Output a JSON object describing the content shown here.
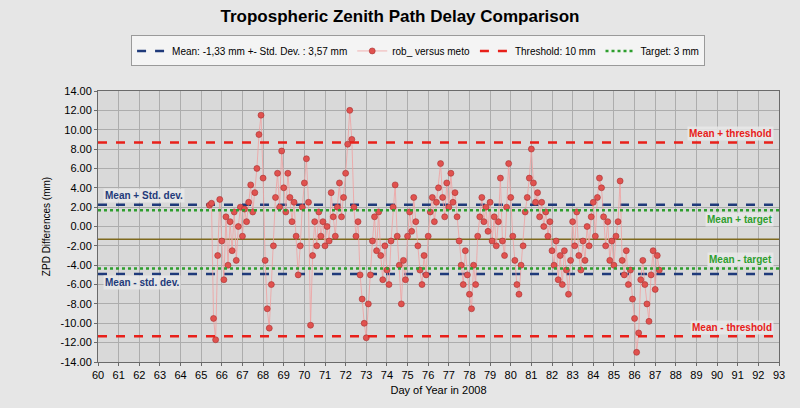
{
  "chart_data": {
    "type": "scatter",
    "title": "Tropospheric Zenith Path Delay Comparison",
    "x_label": "Day of Year in 2008",
    "y_label": "ZPD Differences (mm)",
    "xlim": [
      60,
      93
    ],
    "xticks": [
      60,
      61,
      62,
      63,
      64,
      65,
      66,
      67,
      68,
      69,
      70,
      71,
      72,
      73,
      74,
      75,
      76,
      77,
      78,
      79,
      80,
      81,
      82,
      83,
      84,
      85,
      86,
      87,
      88,
      89,
      90,
      91,
      92,
      93
    ],
    "ylim": [
      -14,
      14
    ],
    "yticks": [
      {
        "value": -14,
        "label": "-14.00"
      },
      {
        "value": -12,
        "label": "-12.00"
      },
      {
        "value": -10,
        "label": "-10.00"
      },
      {
        "value": -8,
        "label": "-8.00"
      },
      {
        "value": -6,
        "label": "-6.00"
      },
      {
        "value": -4,
        "label": "-4.00"
      },
      {
        "value": -2,
        "label": "-2.00"
      },
      {
        "value": 0,
        "label": "0.00"
      },
      {
        "value": 2,
        "label": "2.00"
      },
      {
        "value": 4,
        "label": "4.00"
      },
      {
        "value": 6,
        "label": "6.00"
      },
      {
        "value": 8,
        "label": "8.00"
      },
      {
        "value": 10,
        "label": "10.00"
      },
      {
        "value": 12,
        "label": "12.00"
      },
      {
        "value": 14,
        "label": "14.00"
      }
    ],
    "grid": true,
    "legend": "top",
    "series": [
      {
        "name": "rob_ versus meto",
        "color": "#e0524f",
        "marker": "circle",
        "line_style": "solid",
        "x": [
          65.4,
          65.5,
          65.6,
          65.7,
          65.8,
          65.9,
          66.0,
          66.1,
          66.2,
          66.3,
          66.4,
          66.5,
          66.6,
          66.7,
          66.8,
          66.9,
          67.0,
          67.1,
          67.2,
          67.3,
          67.4,
          67.5,
          67.6,
          67.7,
          67.8,
          67.9,
          68.0,
          68.1,
          68.2,
          68.3,
          68.4,
          68.5,
          68.6,
          68.7,
          68.8,
          68.9,
          69.0,
          69.1,
          69.2,
          69.3,
          69.4,
          69.5,
          69.6,
          69.7,
          69.8,
          69.9,
          70.0,
          70.1,
          70.2,
          70.3,
          70.4,
          70.5,
          70.6,
          70.7,
          70.8,
          70.9,
          71.0,
          71.1,
          71.2,
          71.3,
          71.4,
          71.5,
          71.6,
          71.7,
          71.8,
          71.9,
          72.0,
          72.1,
          72.2,
          72.3,
          72.4,
          72.5,
          72.6,
          72.7,
          72.8,
          72.9,
          73.0,
          73.1,
          73.2,
          73.3,
          73.4,
          73.5,
          73.6,
          73.7,
          73.8,
          73.9,
          74.0,
          74.1,
          74.2,
          74.3,
          74.4,
          74.5,
          74.6,
          74.7,
          74.8,
          74.9,
          75.0,
          75.1,
          75.2,
          75.3,
          75.4,
          75.5,
          75.6,
          75.7,
          75.8,
          75.9,
          76.0,
          76.1,
          76.2,
          76.3,
          76.4,
          76.5,
          76.6,
          76.7,
          76.8,
          76.9,
          77.0,
          77.1,
          77.2,
          77.3,
          77.4,
          77.5,
          77.6,
          77.7,
          77.8,
          77.9,
          78.0,
          78.1,
          78.2,
          78.3,
          78.4,
          78.5,
          78.6,
          78.7,
          78.8,
          78.9,
          79.0,
          79.1,
          79.2,
          79.3,
          79.4,
          79.5,
          79.6,
          79.7,
          79.8,
          79.9,
          80.0,
          80.1,
          80.2,
          80.3,
          80.4,
          80.5,
          80.6,
          80.7,
          80.8,
          80.9,
          81.0,
          81.1,
          81.2,
          81.3,
          81.4,
          81.5,
          81.6,
          81.7,
          81.8,
          81.9,
          82.0,
          82.1,
          82.2,
          82.3,
          82.4,
          82.5,
          82.6,
          82.7,
          82.8,
          82.9,
          83.0,
          83.1,
          83.2,
          83.3,
          83.4,
          83.5,
          83.6,
          83.7,
          83.8,
          83.9,
          84.0,
          84.1,
          84.2,
          84.3,
          84.4,
          84.5,
          84.6,
          84.7,
          84.8,
          84.9,
          85.0,
          85.1,
          85.2,
          85.3,
          85.4,
          85.5,
          85.6,
          85.7,
          85.8,
          85.9,
          86.0,
          86.1,
          86.2,
          86.3,
          86.4,
          86.5,
          86.6,
          86.7,
          86.8,
          86.9,
          87.0,
          87.1,
          87.2
        ],
        "values": [
          2.2,
          2.4,
          -9.5,
          -11.7,
          -3.0,
          2.8,
          -1.5,
          -5.5,
          1.0,
          -4.0,
          0.5,
          -2.5,
          1.5,
          -3.5,
          0.0,
          2.0,
          -1.0,
          1.8,
          0.5,
          2.5,
          4.3,
          1.5,
          3.5,
          6.0,
          9.5,
          11.5,
          5.0,
          -3.5,
          -8.5,
          -10.5,
          -6.0,
          -2.0,
          3.0,
          5.5,
          2.0,
          7.8,
          4.0,
          1.5,
          5.5,
          3.0,
          0.5,
          2.5,
          -1.0,
          -5.0,
          -2.0,
          2.0,
          4.5,
          7.0,
          2.5,
          -10.2,
          -3.0,
          0.5,
          -2.0,
          1.5,
          -1.0,
          0.5,
          -2.0,
          0.0,
          -1.5,
          3.5,
          1.0,
          -1.0,
          2.0,
          4.5,
          1.0,
          3.0,
          5.5,
          8.5,
          12.0,
          9.0,
          2.0,
          -1.0,
          0.5,
          -5.0,
          -7.5,
          -10.0,
          -11.5,
          -8.0,
          -5.0,
          -1.5,
          1.0,
          -2.5,
          1.5,
          -3.0,
          -5.5,
          -2.0,
          -4.5,
          -6.0,
          -1.5,
          2.0,
          4.3,
          -1.0,
          -4.0,
          -8.0,
          -3.5,
          -5.5,
          -1.0,
          1.5,
          -0.5,
          3.0,
          0.5,
          -2.0,
          -4.5,
          -6.0,
          -3.0,
          -5.0,
          -1.0,
          1.5,
          3.0,
          0.5,
          2.5,
          4.0,
          6.5,
          3.0,
          1.0,
          4.5,
          2.0,
          5.5,
          2.5,
          3.5,
          1.0,
          -1.5,
          -4.0,
          -6.0,
          -2.5,
          -5.0,
          -7.0,
          -8.5,
          -4.0,
          -6.0,
          -1.0,
          1.0,
          3.0,
          0.5,
          2.0,
          -0.5,
          2.5,
          -1.5,
          1.0,
          -2.0,
          0.5,
          5.0,
          -1.5,
          -3.0,
          2.0,
          6.5,
          3.0,
          -1.0,
          -3.5,
          -6.0,
          -7.0,
          -4.0,
          -2.0,
          1.5,
          3.0,
          5.0,
          8.0,
          4.5,
          2.5,
          3.5,
          1.0,
          2.5,
          0.0,
          1.5,
          -1.0,
          0.5,
          -2.5,
          -4.0,
          -1.5,
          -5.5,
          -3.0,
          -6.0,
          -2.5,
          -4.5,
          -7.0,
          -3.5,
          0.5,
          -2.0,
          1.5,
          -3.0,
          -4.5,
          -1.5,
          -3.5,
          0.0,
          -2.0,
          1.0,
          2.5,
          -1.0,
          3.0,
          5.0,
          4.0,
          1.0,
          -2.0,
          0.5,
          -3.5,
          -1.5,
          -4.0,
          -1.0,
          0.5,
          4.7,
          -3.5,
          -5.0,
          -2.5,
          -6.0,
          -4.5,
          -7.5,
          -9.5,
          -13.0,
          -11.0,
          -5.5,
          -3.5,
          -6.0,
          -8.0,
          -9.8,
          -5.0,
          -2.5,
          -6.5,
          -3.0,
          -4.5
        ]
      }
    ],
    "reference_lines": [
      {
        "name": "Mean: -1,33 mm +- Std. Dev. : 3,57 mm",
        "color": "#1f3a7a",
        "line_style": "dashed",
        "lines": [
          {
            "value": 2.24,
            "label": "Mean + Std. dev."
          },
          {
            "value": -4.9,
            "label": "Mean - std. dev."
          }
        ]
      },
      {
        "name": "Threshold: 10 mm",
        "color": "#e8201a",
        "line_style": "dashed",
        "lines": [
          {
            "value": 8.67,
            "label": "Mean + threshold"
          },
          {
            "value": -11.33,
            "label": "Mean - threshold"
          }
        ]
      },
      {
        "name": "Target: 3 mm",
        "color": "#2e9e2e",
        "line_style": "dotted",
        "lines": [
          {
            "value": 1.67,
            "label": "Mean + target"
          },
          {
            "value": -4.33,
            "label": "Mean - target"
          }
        ]
      },
      {
        "color": "#7f6a1f",
        "line_style": "solid",
        "lines": [
          {
            "value": -1.33
          }
        ]
      }
    ]
  }
}
